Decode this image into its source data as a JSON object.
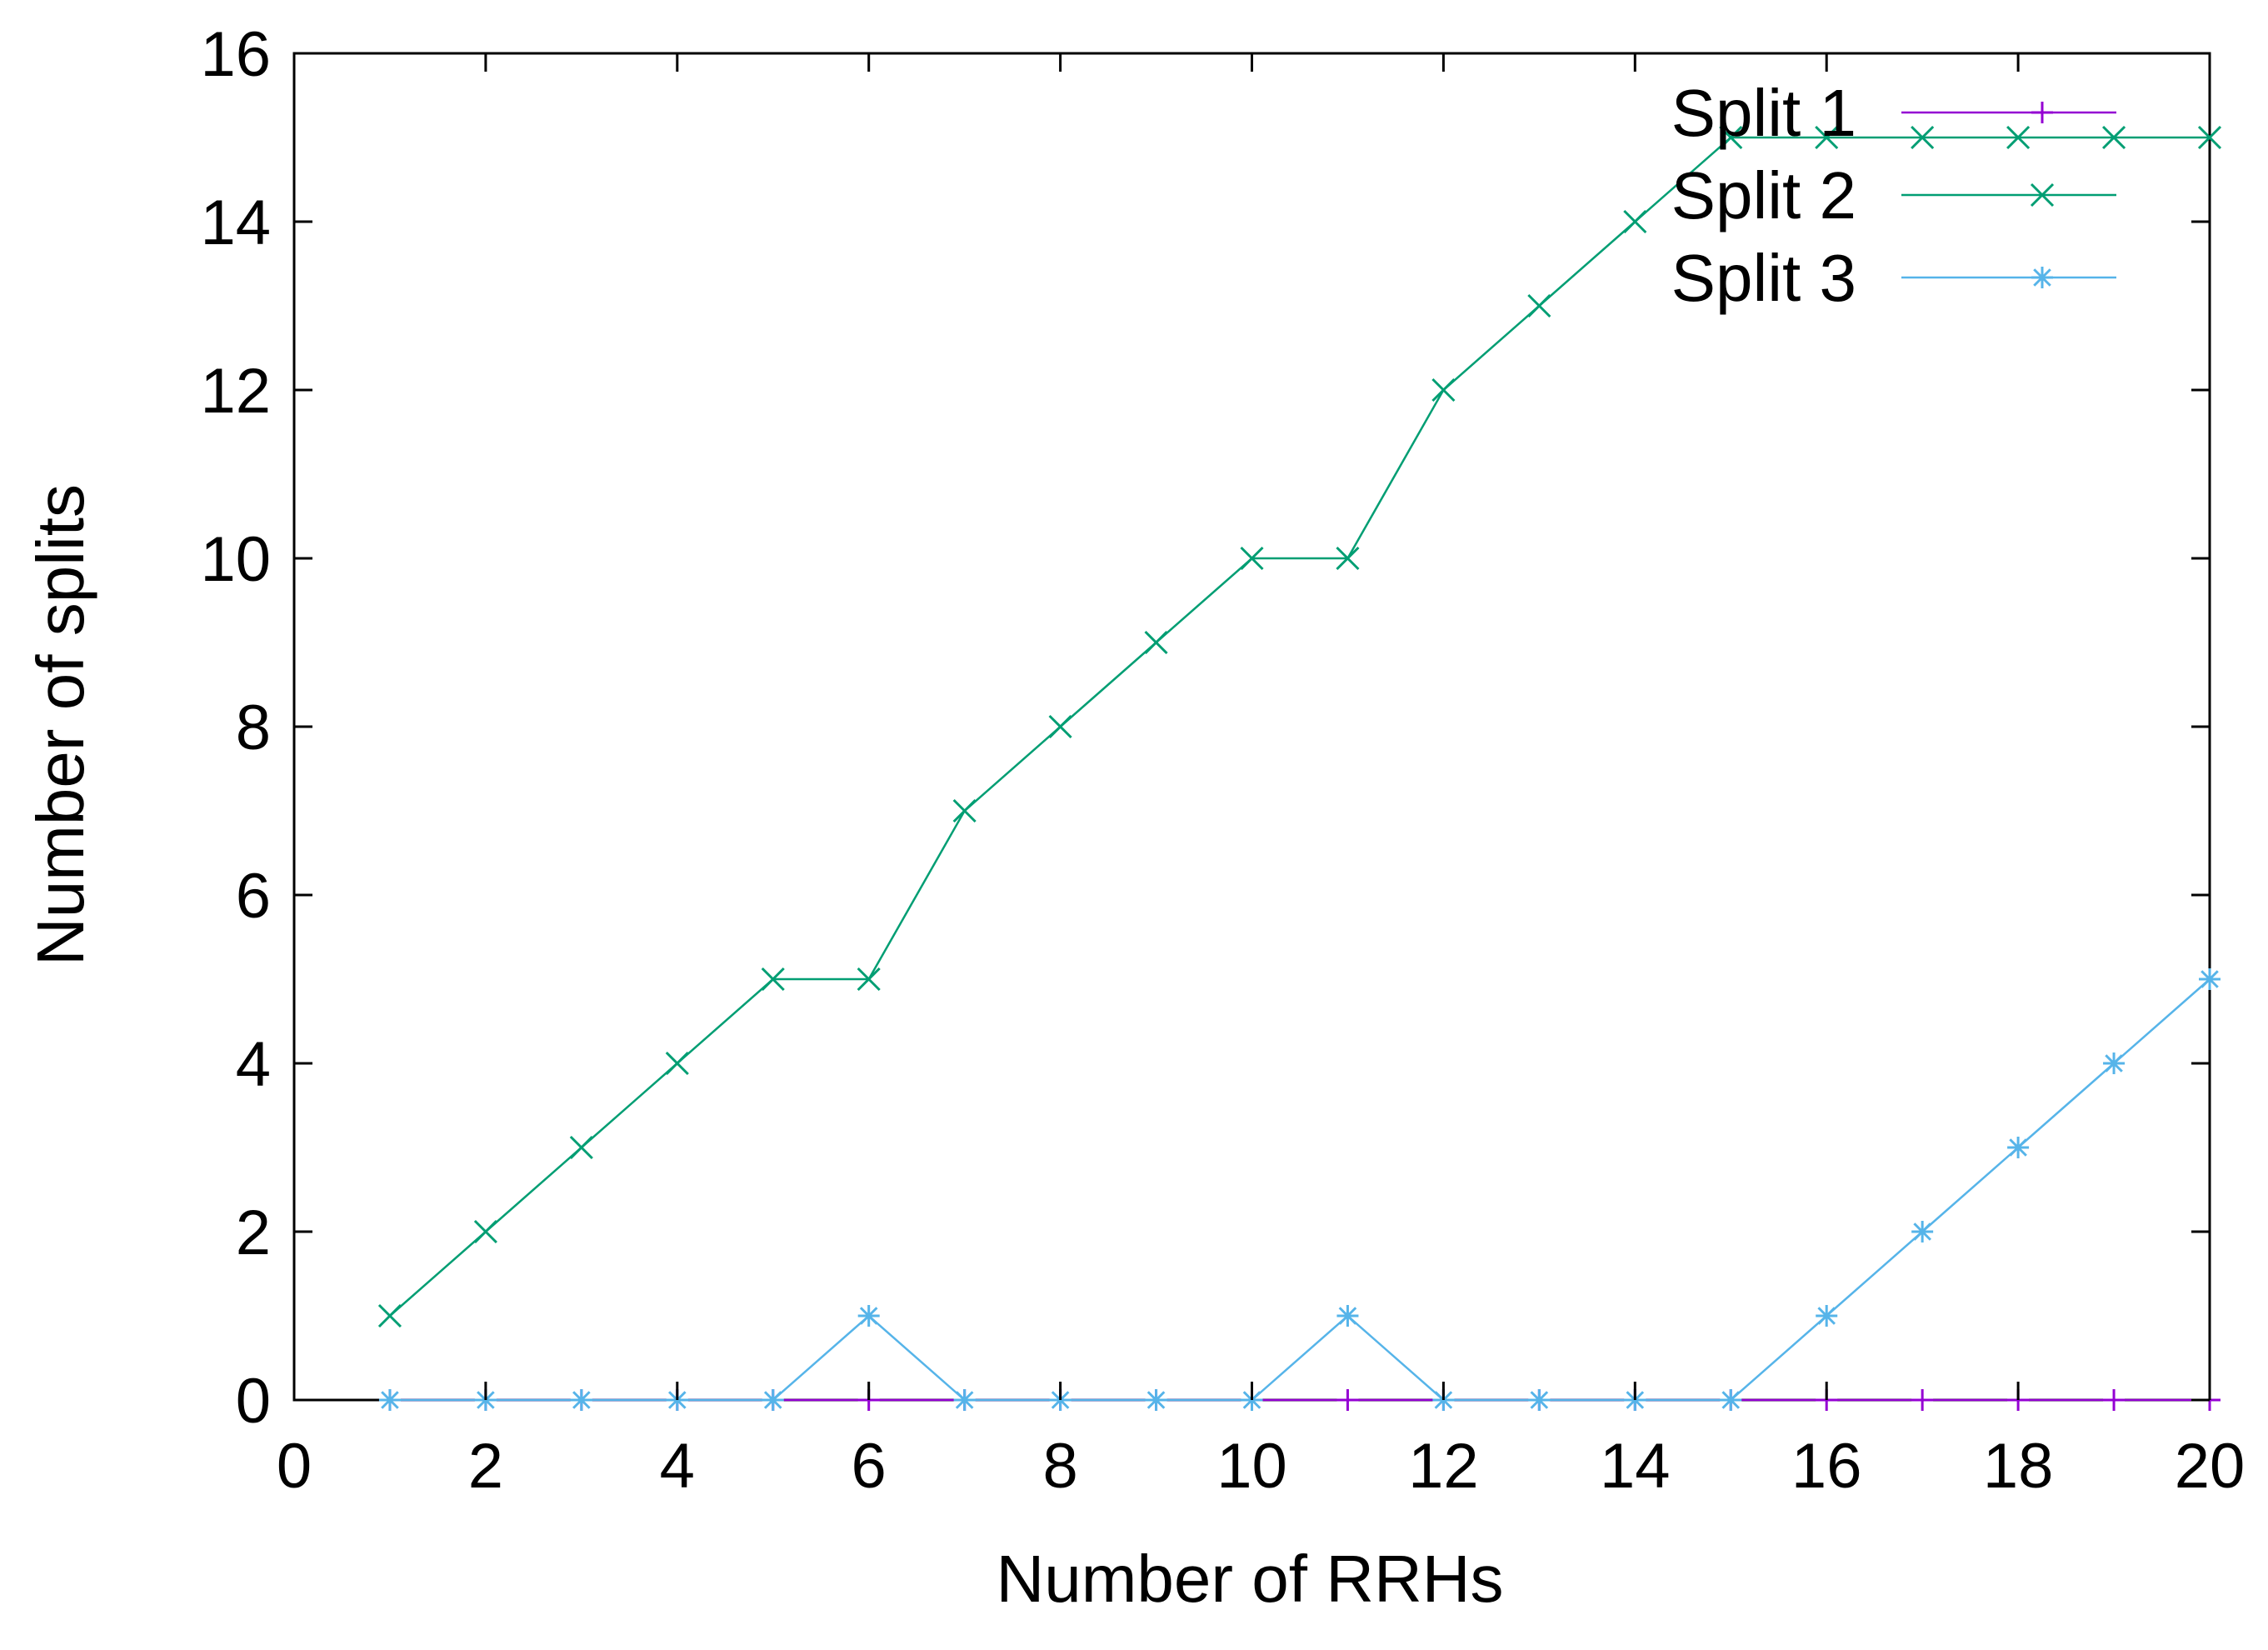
{
  "chart_data": {
    "type": "line",
    "title": "",
    "xlabel": "Number of RRHs",
    "ylabel": "Number of splits",
    "xlim": [
      0,
      20
    ],
    "ylim": [
      0,
      16
    ],
    "xticks": [
      0,
      2,
      4,
      6,
      8,
      10,
      12,
      14,
      16,
      18,
      20
    ],
    "yticks": [
      0,
      2,
      4,
      6,
      8,
      10,
      12,
      14,
      16
    ],
    "grid": false,
    "legend_position": "top-right",
    "x": [
      1,
      2,
      3,
      4,
      5,
      6,
      7,
      8,
      9,
      10,
      11,
      12,
      13,
      14,
      15,
      16,
      17,
      18,
      19,
      20
    ],
    "series": [
      {
        "name": "Split 1",
        "marker": "plus",
        "color": "#9400d3",
        "values": [
          0,
          0,
          0,
          0,
          0,
          0,
          0,
          0,
          0,
          0,
          0,
          0,
          0,
          0,
          0,
          0,
          0,
          0,
          0,
          0
        ]
      },
      {
        "name": "Split 2",
        "marker": "cross",
        "color": "#009e73",
        "values": [
          1,
          2,
          3,
          4,
          5,
          5,
          7,
          8,
          9,
          10,
          10,
          12,
          13,
          14,
          15,
          15,
          15,
          15,
          15,
          15
        ]
      },
      {
        "name": "Split 3",
        "marker": "star",
        "color": "#56b4e9",
        "values": [
          0,
          0,
          0,
          0,
          0,
          1,
          0,
          0,
          0,
          0,
          1,
          0,
          0,
          0,
          0,
          1,
          2,
          3,
          4,
          5
        ]
      }
    ]
  }
}
